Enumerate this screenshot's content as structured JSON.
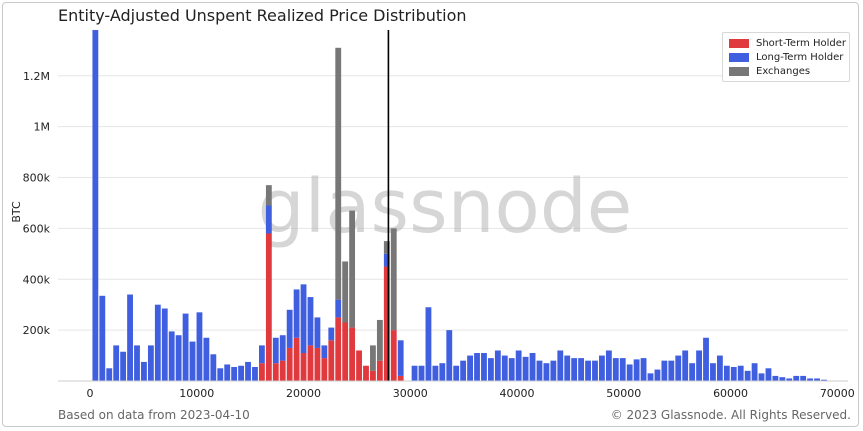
{
  "title": "Entity-Adjusted Unspent Realized Price Distribution",
  "footer": {
    "left": "Based on data from 2023-04-10",
    "right": "© 2023 Glassnode. All Rights Reserved."
  },
  "watermark": "glassnode",
  "colors": {
    "sth": "#e0393e",
    "lth": "#3f5fe0",
    "exchanges": "#777777",
    "grid": "#e6e6e6",
    "axis": "#222222"
  },
  "chart_data": {
    "type": "bar",
    "stacked": true,
    "ylabel": "BTC",
    "xlabel": "",
    "xlim": [
      -3000,
      71000
    ],
    "ylim": [
      0,
      1380000
    ],
    "x_ticks": [
      0,
      10000,
      20000,
      30000,
      40000,
      50000,
      60000,
      70000
    ],
    "x_tick_labels": [
      "0",
      "10000",
      "20000",
      "30000",
      "40000",
      "50000",
      "60000",
      "70000"
    ],
    "y_ticks": [
      200000,
      400000,
      600000,
      800000,
      1000000,
      1200000
    ],
    "y_tick_labels": [
      "200k",
      "400k",
      "600k",
      "800k",
      "1M",
      "1.2M"
    ],
    "grid": true,
    "legend_position": "top-right",
    "bin_width": 650,
    "current_price_line": 27950,
    "x": [
      500,
      1150,
      1800,
      2450,
      3100,
      3750,
      4400,
      5050,
      5700,
      6350,
      7000,
      7650,
      8300,
      8950,
      9600,
      10250,
      10900,
      11550,
      12200,
      12850,
      13500,
      14150,
      14800,
      15450,
      16100,
      16750,
      17400,
      18050,
      18700,
      19350,
      20000,
      20650,
      21300,
      21950,
      22600,
      23250,
      23900,
      24550,
      25200,
      25850,
      26500,
      27150,
      27800,
      28450,
      29100,
      29750,
      30400,
      31050,
      31700,
      32350,
      33000,
      33650,
      34300,
      34950,
      35600,
      36250,
      36900,
      37550,
      38200,
      38850,
      39500,
      40150,
      40800,
      41450,
      42100,
      42750,
      43400,
      44050,
      44700,
      45350,
      46000,
      46650,
      47300,
      47950,
      48600,
      49250,
      49900,
      50550,
      51200,
      51850,
      52500,
      53150,
      53800,
      54450,
      55100,
      55750,
      56400,
      57050,
      57700,
      58350,
      59000,
      59650,
      60300,
      60950,
      61600,
      62250,
      62900,
      63550,
      64200,
      64850,
      65500,
      66150,
      66800,
      67450,
      68100,
      68750
    ],
    "series": [
      {
        "name": "Short-Term Holder",
        "color": "#e0393e",
        "values": [
          0,
          0,
          0,
          0,
          0,
          0,
          0,
          0,
          0,
          0,
          0,
          0,
          0,
          0,
          0,
          0,
          0,
          0,
          0,
          0,
          0,
          0,
          0,
          0,
          70000,
          580000,
          70000,
          80000,
          130000,
          170000,
          110000,
          140000,
          130000,
          90000,
          160000,
          250000,
          230000,
          210000,
          120000,
          60000,
          40000,
          80000,
          450000,
          200000,
          20000,
          0,
          0,
          0,
          0,
          0,
          0,
          0,
          0,
          0,
          0,
          0,
          0,
          0,
          0,
          0,
          0,
          0,
          0,
          0,
          0,
          0,
          0,
          0,
          0,
          0,
          0,
          0,
          0,
          0,
          0,
          0,
          0,
          0,
          0,
          0,
          0,
          0,
          0,
          0,
          0,
          0,
          0,
          0,
          0,
          0,
          0,
          0,
          0,
          0,
          0,
          0,
          0,
          0,
          0,
          0,
          0,
          0,
          0,
          0,
          0,
          0
        ]
      },
      {
        "name": "Long-Term Holder",
        "color": "#3f5fe0",
        "values": [
          1380000,
          335000,
          50000,
          140000,
          115000,
          340000,
          140000,
          75000,
          140000,
          300000,
          285000,
          195000,
          180000,
          265000,
          155000,
          270000,
          170000,
          105000,
          50000,
          65000,
          55000,
          60000,
          75000,
          55000,
          70000,
          110000,
          100000,
          100000,
          150000,
          190000,
          270000,
          190000,
          120000,
          50000,
          50000,
          70000,
          0,
          0,
          0,
          0,
          0,
          0,
          50000,
          0,
          140000,
          0,
          60000,
          60000,
          290000,
          60000,
          70000,
          200000,
          60000,
          80000,
          100000,
          110000,
          110000,
          90000,
          120000,
          100000,
          90000,
          120000,
          95000,
          110000,
          80000,
          70000,
          80000,
          120000,
          100000,
          90000,
          90000,
          80000,
          80000,
          100000,
          120000,
          90000,
          90000,
          65000,
          85000,
          90000,
          30000,
          45000,
          80000,
          80000,
          100000,
          120000,
          70000,
          120000,
          170000,
          70000,
          100000,
          60000,
          55000,
          60000,
          40000,
          70000,
          30000,
          50000,
          20000,
          15000,
          10000,
          20000,
          20000,
          10000,
          10000,
          5000
        ]
      },
      {
        "name": "Exchanges",
        "color": "#777777",
        "values": [
          0,
          0,
          0,
          0,
          0,
          0,
          0,
          0,
          0,
          0,
          0,
          0,
          0,
          0,
          0,
          0,
          0,
          0,
          0,
          0,
          0,
          0,
          0,
          0,
          0,
          80000,
          0,
          0,
          0,
          0,
          0,
          0,
          0,
          0,
          0,
          990000,
          240000,
          460000,
          0,
          0,
          100000,
          160000,
          50000,
          400000,
          0,
          0,
          0,
          0,
          0,
          0,
          0,
          0,
          0,
          0,
          0,
          0,
          0,
          0,
          0,
          0,
          0,
          0,
          0,
          0,
          0,
          0,
          0,
          0,
          0,
          0,
          0,
          0,
          0,
          0,
          0,
          0,
          0,
          0,
          0,
          0,
          0,
          0,
          0,
          0,
          0,
          0,
          0,
          0,
          0,
          0,
          0,
          0,
          0,
          0,
          0,
          0,
          0,
          0,
          0,
          0,
          0,
          0,
          0,
          0,
          0,
          0
        ]
      }
    ]
  }
}
